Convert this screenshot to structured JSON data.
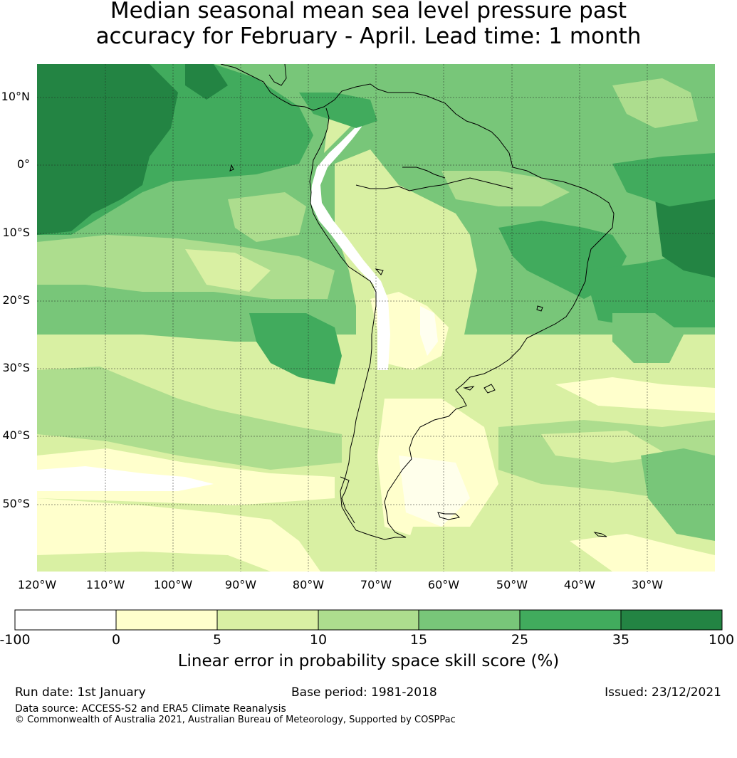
{
  "title": {
    "line1": "Median seasonal mean sea level pressure past",
    "line2": "accuracy for February - April. Lead time: 1 month"
  },
  "map": {
    "lat_labels": [
      "10°N",
      "0°",
      "10°S",
      "20°S",
      "30°S",
      "40°S",
      "50°S"
    ],
    "lon_labels": [
      "120°W",
      "110°W",
      "100°W",
      "90°W",
      "80°W",
      "70°W",
      "60°W",
      "50°W",
      "40°W",
      "30°W"
    ],
    "gridlines": "dotted",
    "coastlines": "black"
  },
  "colorbar": {
    "ticks": [
      "-100",
      "0",
      "5",
      "10",
      "15",
      "25",
      "35",
      "100"
    ],
    "colors": [
      "#ffffff",
      "#ffffcc",
      "#d9f0a3",
      "#addd8e",
      "#78c679",
      "#41ab5d",
      "#238443"
    ],
    "label": "Linear error in probability space skill score (%)"
  },
  "footer": {
    "run_date": "Run date: 1st January",
    "base_period": "Base period: 1981-2018",
    "issued": "Issued: 23/12/2021",
    "data_source": "Data source: ACCESS-S2 and ERA5 Climate Reanalysis",
    "copyright": "© Commonwealth of Australia 2021, Australian Bureau of Meteorology, Supported by COSPPac"
  }
}
